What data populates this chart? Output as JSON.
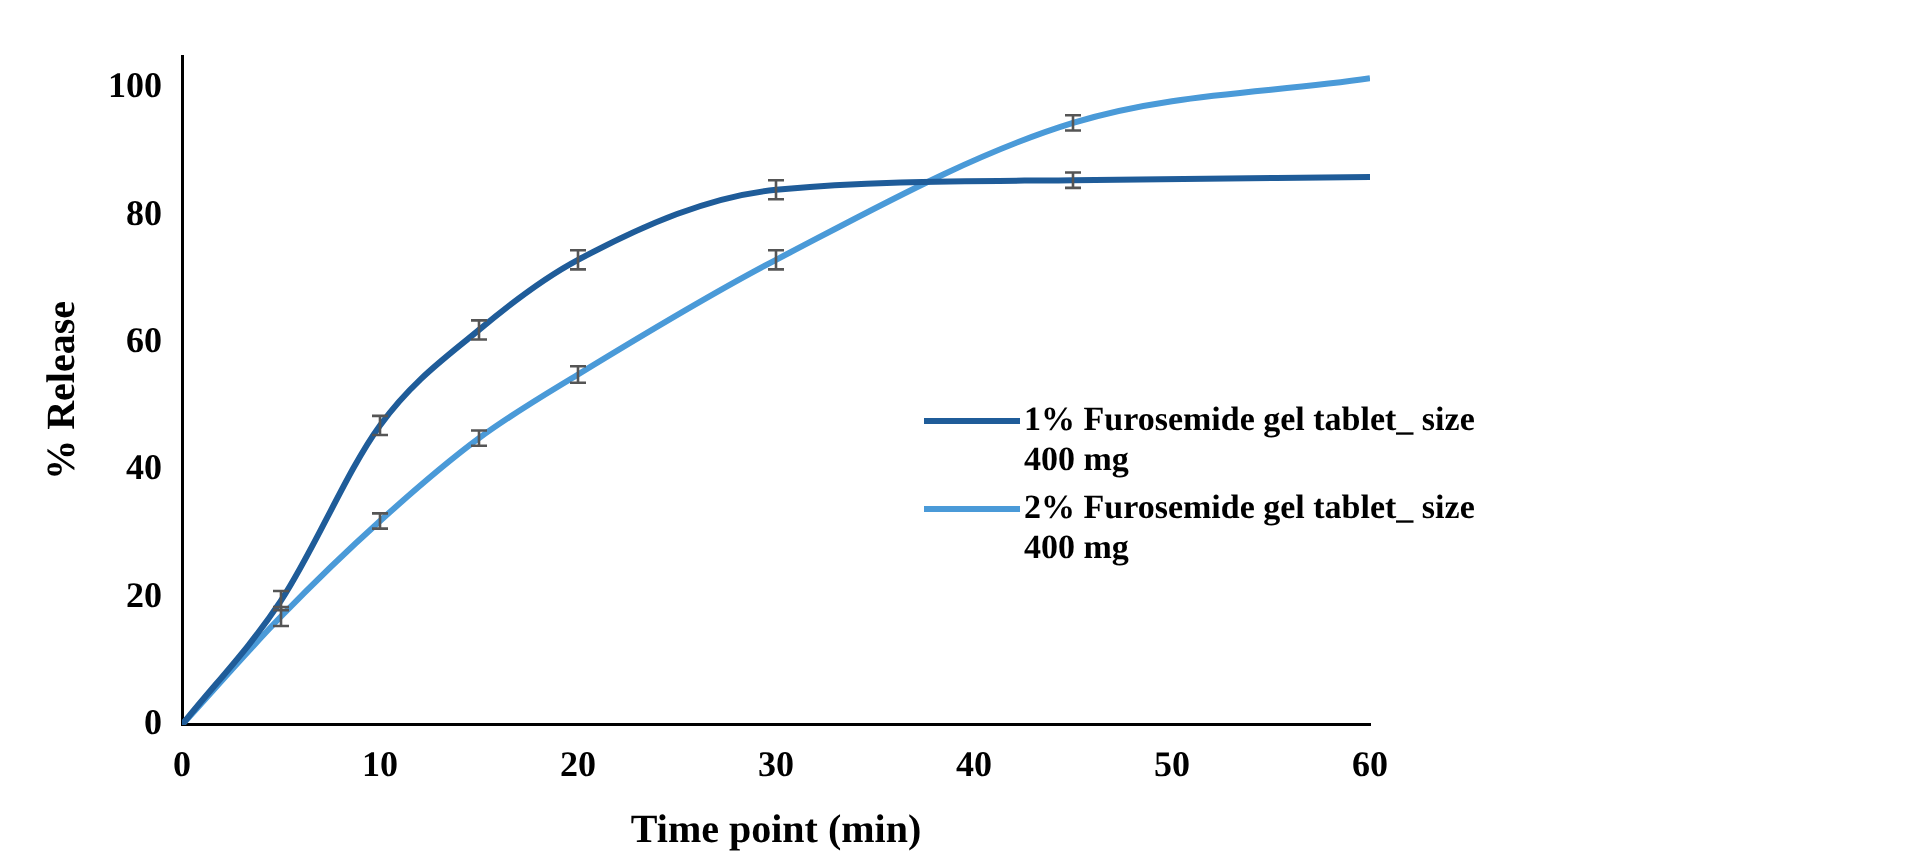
{
  "chart_data": {
    "type": "line",
    "xlabel": "Time point (min)",
    "ylabel": "% Release",
    "x": [
      0,
      5,
      10,
      15,
      20,
      30,
      45,
      60
    ],
    "series": [
      {
        "name": "1% Furosemide gel tablet_ size 400 mg",
        "color": "#1f5c99",
        "values": [
          0,
          19.5,
          47,
          62,
          73,
          84,
          85.5,
          86
        ],
        "errors": [
          null,
          1.5,
          1.5,
          1.5,
          1.5,
          1.5,
          1.2,
          null
        ]
      },
      {
        "name": "2% Furosemide gel tablet_ size 400 mg",
        "color": "#4a9ad8",
        "values": [
          0,
          17,
          32,
          45,
          55,
          73,
          94.5,
          101.5
        ],
        "errors": [
          null,
          1.5,
          1.2,
          1.2,
          1.3,
          1.5,
          1.2,
          null
        ]
      }
    ],
    "xlim": [
      0,
      60
    ],
    "xticks": [
      0,
      10,
      20,
      30,
      40,
      50,
      60
    ],
    "ylim": [
      0,
      105
    ],
    "yticks": [
      0,
      20,
      40,
      60,
      80,
      100
    ],
    "grid": false,
    "legend": "right",
    "line_style": "solid"
  }
}
